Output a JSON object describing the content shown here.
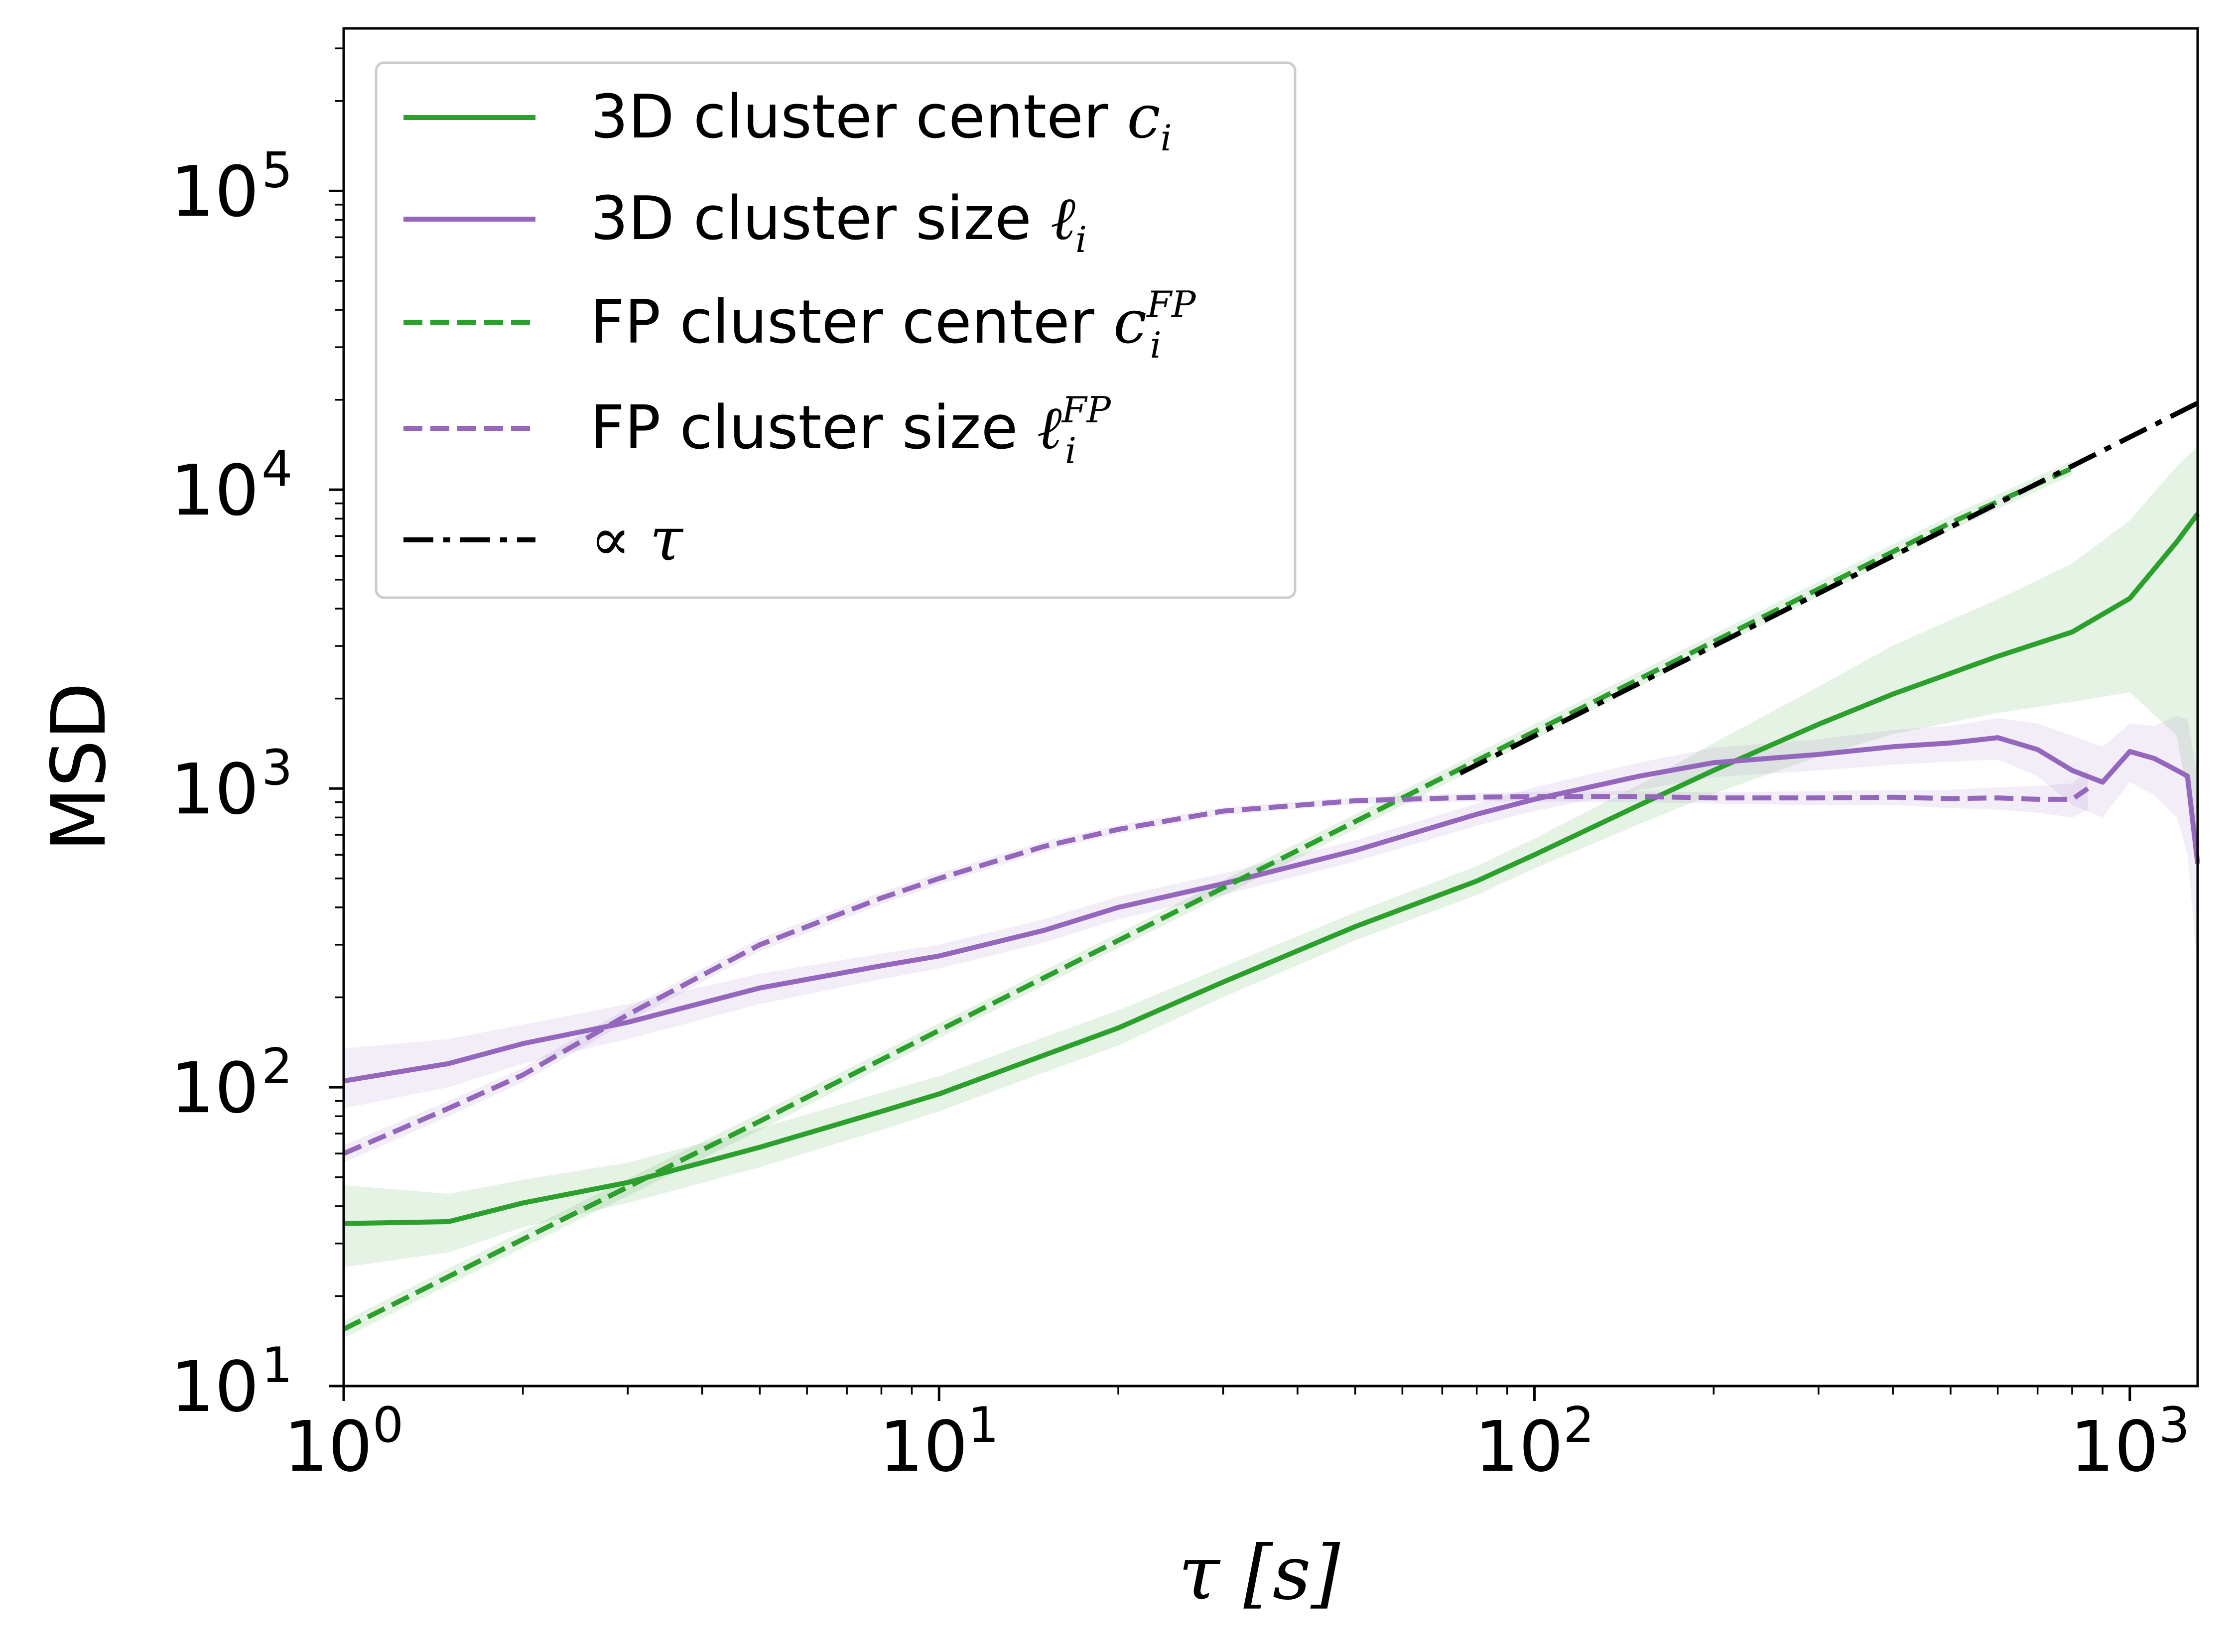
{
  "chart_data": {
    "type": "line",
    "xscale": "log",
    "yscale": "log",
    "xlim": [
      1,
      1300
    ],
    "ylim": [
      10,
      350000
    ],
    "xlabel": "τ [s]",
    "ylabel": "MSD",
    "title": "",
    "legend_position": "top-left",
    "grid": false,
    "x_ticks": [
      {
        "value": 1,
        "base": "10",
        "exp": "0"
      },
      {
        "value": 10,
        "base": "10",
        "exp": "1"
      },
      {
        "value": 100,
        "base": "10",
        "exp": "2"
      },
      {
        "value": 1000,
        "base": "10",
        "exp": "3"
      }
    ],
    "y_ticks": [
      {
        "value": 10,
        "base": "10",
        "exp": "1"
      },
      {
        "value": 100,
        "base": "10",
        "exp": "2"
      },
      {
        "value": 1000,
        "base": "10",
        "exp": "3"
      },
      {
        "value": 10000,
        "base": "10",
        "exp": "4"
      },
      {
        "value": 100000,
        "base": "10",
        "exp": "5"
      }
    ],
    "series": [
      {
        "key": "center_3d",
        "legend_text": "3D cluster center ",
        "legend_math": "c",
        "legend_sub": "i",
        "legend_sup": "",
        "color": "#2ca02c",
        "style": "solid",
        "x": [
          1,
          1.5,
          2,
          3,
          5,
          8,
          10,
          15,
          20,
          30,
          50,
          80,
          100,
          150,
          200,
          300,
          400,
          600,
          800,
          1000,
          1200,
          1300
        ],
        "y": [
          35,
          35.5,
          41,
          48,
          63,
          83,
          95,
          128,
          158,
          225,
          345,
          490,
          600,
          880,
          1150,
          1640,
          2070,
          2770,
          3340,
          4330,
          6700,
          8300
        ],
        "band_lower": [
          25,
          28,
          34,
          41,
          54,
          72,
          83,
          112,
          138,
          200,
          310,
          440,
          540,
          760,
          960,
          1280,
          1520,
          1790,
          1950,
          2100,
          1500,
          600
        ],
        "band_upper": [
          47,
          44,
          49,
          56,
          73,
          96,
          109,
          147,
          181,
          253,
          385,
          550,
          680,
          1030,
          1420,
          2190,
          3010,
          4300,
          5660,
          7900,
          12000,
          14000
        ]
      },
      {
        "key": "size_3d",
        "legend_text": "3D cluster size ",
        "legend_math": "ℓ",
        "legend_sub": "i",
        "legend_sup": "",
        "color": "#9467bd",
        "style": "solid",
        "x": [
          1,
          1.5,
          2,
          3,
          5,
          8,
          10,
          15,
          20,
          30,
          50,
          80,
          100,
          150,
          200,
          300,
          400,
          500,
          600,
          700,
          800,
          900,
          1000,
          1100,
          1200,
          1250,
          1300
        ],
        "y": [
          105,
          120,
          140,
          165,
          215,
          255,
          275,
          335,
          400,
          480,
          620,
          820,
          920,
          1100,
          1220,
          1300,
          1380,
          1420,
          1480,
          1350,
          1150,
          1050,
          1330,
          1260,
          1150,
          1100,
          560
        ],
        "band_lower": [
          85,
          100,
          120,
          145,
          190,
          230,
          250,
          305,
          365,
          440,
          570,
          750,
          840,
          990,
          1090,
          1150,
          1200,
          1230,
          1250,
          1100,
          880,
          800,
          1050,
          950,
          800,
          600,
          250
        ],
        "band_upper": [
          135,
          145,
          162,
          190,
          240,
          280,
          300,
          365,
          435,
          520,
          670,
          890,
          1010,
          1220,
          1370,
          1460,
          1570,
          1620,
          1720,
          1650,
          1500,
          1380,
          1650,
          1620,
          1750,
          1700,
          1100
        ]
      },
      {
        "key": "center_fp",
        "legend_text": "FP cluster center ",
        "legend_math": "c",
        "legend_sub": "i",
        "legend_sup": "FP",
        "color": "#2ca02c",
        "style": "dashed",
        "x": [
          1,
          2,
          5,
          10,
          20,
          50,
          100,
          200,
          500,
          800
        ],
        "y": [
          15.5,
          31,
          77,
          155,
          310,
          775,
          1550,
          3100,
          7750,
          11800
        ],
        "band_lower": [
          14.5,
          29,
          72,
          146,
          292,
          730,
          1460,
          2920,
          7300,
          11200
        ],
        "band_upper": [
          16.5,
          33,
          82,
          164,
          328,
          820,
          1640,
          3280,
          8200,
          12500
        ]
      },
      {
        "key": "size_fp",
        "legend_text": "FP cluster size ",
        "legend_math": "ℓ",
        "legend_sub": "i",
        "legend_sup": "FP",
        "color": "#9467bd",
        "style": "dashed",
        "x": [
          1,
          1.5,
          2,
          3,
          5,
          8,
          10,
          15,
          20,
          30,
          50,
          80,
          100,
          150,
          200,
          300,
          400,
          500,
          600,
          700,
          800,
          850
        ],
        "y": [
          60,
          85,
          110,
          175,
          300,
          430,
          500,
          640,
          730,
          840,
          910,
          935,
          940,
          940,
          930,
          930,
          935,
          925,
          930,
          920,
          920,
          1000
        ],
        "band_lower": [
          56,
          80,
          104,
          166,
          285,
          410,
          478,
          615,
          705,
          815,
          885,
          905,
          905,
          900,
          890,
          880,
          880,
          860,
          850,
          830,
          800,
          850
        ],
        "band_upper": [
          64,
          90,
          116,
          184,
          315,
          450,
          522,
          665,
          755,
          865,
          935,
          965,
          975,
          980,
          970,
          980,
          990,
          990,
          1010,
          1020,
          1040,
          1150
        ]
      },
      {
        "key": "proportional",
        "legend_text": "",
        "legend_math": "∝ τ",
        "legend_sub": "",
        "legend_sup": "",
        "color": "#000000",
        "style": "dashdot",
        "x": [
          75,
          1300
        ],
        "y": [
          1125,
          19500
        ],
        "band_lower": [],
        "band_upper": []
      }
    ]
  }
}
